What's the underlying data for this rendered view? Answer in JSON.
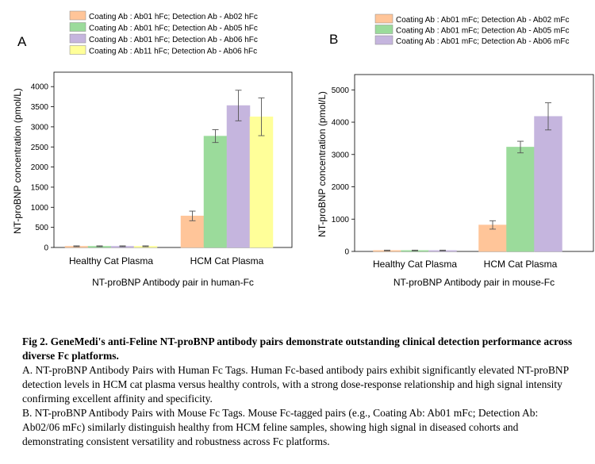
{
  "chart_data": [
    {
      "type": "bar",
      "panel_label": "A",
      "title": "",
      "xlabel": "NT-proBNP Antibody pair in human-Fc",
      "ylabel": "NT-proBNP concentration (pmol/L)",
      "ylim": [
        0,
        4300
      ],
      "yticks": [
        0,
        500,
        1000,
        1500,
        2000,
        2500,
        3000,
        3500,
        4000
      ],
      "categories": [
        "Healthy Cat Plasma",
        "HCM Cat Plasma"
      ],
      "legend_position": "top",
      "series": [
        {
          "name": "Coating Ab : Ab01 hFc; Detection Ab - Ab02 hFc",
          "color": "#FFC599",
          "values": [
            30,
            785
          ],
          "errors": [
            10,
            120
          ]
        },
        {
          "name": "Coating Ab : Ab01 hFc; Detection Ab - Ab05 hFc",
          "color": "#9BDB9B",
          "values": [
            30,
            2770
          ],
          "errors": [
            10,
            160
          ]
        },
        {
          "name": "Coating Ab : Ab01 hFc; Detection Ab - Ab06 hFc",
          "color": "#C5B5DE",
          "values": [
            30,
            3530
          ],
          "errors": [
            10,
            380
          ]
        },
        {
          "name": "Coating Ab : Ab11 hFc; Detection Ab - Ab06 hFc",
          "color": "#FFFF99",
          "values": [
            30,
            3250
          ],
          "errors": [
            10,
            470
          ]
        }
      ]
    },
    {
      "type": "bar",
      "panel_label": "B",
      "title": "",
      "xlabel": "NT-proBNP Antibody pair in mouse-Fc",
      "ylabel": "NT-proBNP concentration (pmol/L)",
      "ylim": [
        0,
        5400
      ],
      "yticks": [
        0,
        1000,
        2000,
        3000,
        4000,
        5000
      ],
      "categories": [
        "Healthy Cat Plasma",
        "HCM Cat Plasma"
      ],
      "legend_position": "top-right",
      "series": [
        {
          "name": "Coating Ab : Ab01 mFc; Detection Ab - Ab02 mFc",
          "color": "#FFC599",
          "values": [
            30,
            820
          ],
          "errors": [
            10,
            130
          ]
        },
        {
          "name": "Coating Ab : Ab01 mFc; Detection Ab - Ab05 mFc",
          "color": "#9BDB9B",
          "values": [
            30,
            3230
          ],
          "errors": [
            10,
            180
          ]
        },
        {
          "name": "Coating Ab : Ab01 mFc; Detection Ab - Ab06 mFc",
          "color": "#C5B5DE",
          "values": [
            30,
            4180
          ],
          "errors": [
            10,
            420
          ]
        }
      ]
    }
  ],
  "caption": {
    "title": "Fig 2. GeneMedi's anti-Feline NT-proBNP antibody pairs demonstrate outstanding clinical detection performance across diverse Fc platforms.",
    "para_a": "A. NT-proBNP Antibody Pairs with Human Fc Tags. Human Fc-based antibody pairs exhibit significantly elevated NT-proBNP detection levels in HCM cat plasma versus healthy controls, with a strong dose-response relationship and high signal intensity confirming excellent affinity and specificity.",
    "para_b": "B. NT-proBNP Antibody Pairs with Mouse Fc Tags. Mouse Fc-tagged pairs (e.g., Coating Ab: Ab01 mFc; Detection Ab: Ab02/06 mFc) similarly distinguish healthy from HCM feline samples, showing high signal in diseased cohorts and demonstrating consistent versatility and robustness across Fc platforms."
  }
}
